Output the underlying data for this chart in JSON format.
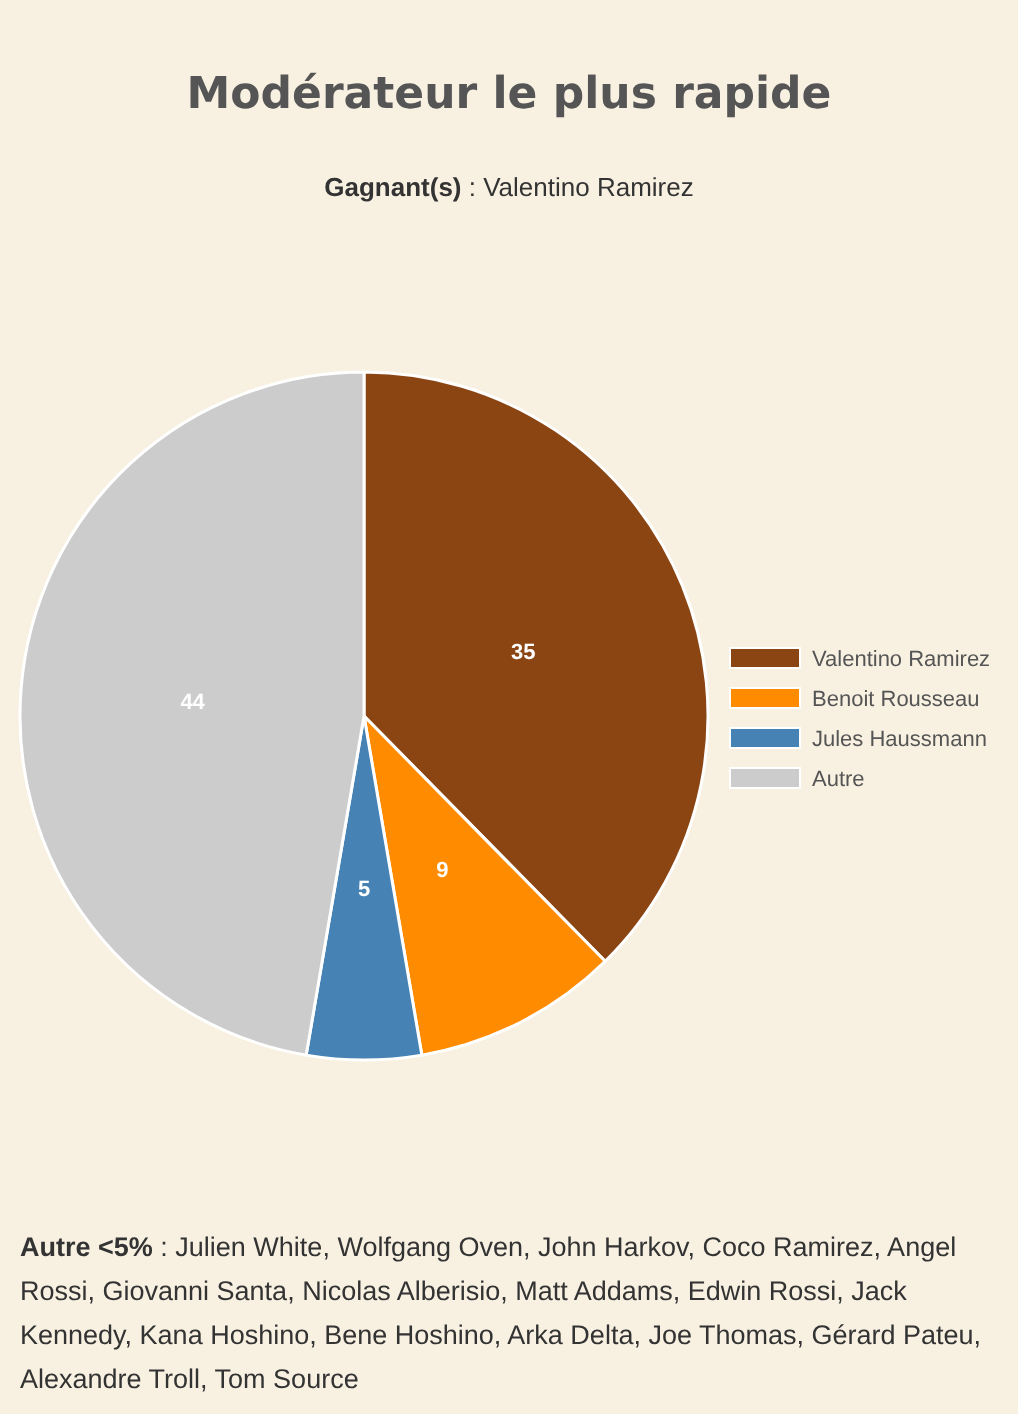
{
  "chart_data": {
    "type": "pie",
    "title": "Modérateur le plus rapide",
    "subtitle": "Gagnant(s) : Valentino Ramirez",
    "categories": [
      "Valentino Ramirez",
      "Benoit Rousseau",
      "Jules Haussmann",
      "Autre"
    ],
    "values": [
      35,
      9,
      5,
      44
    ],
    "colors": [
      "#8b4513",
      "#ff8c00",
      "#4682b4",
      "#cccccc"
    ],
    "data_labels": true,
    "legend": "right",
    "annotations": [
      "Autre <5% : Julien White, Wolfgang Oven, John Harkov, Coco Ramirez, Angel Rossi, Giovanni Santa, Nicolas Alberisio, Matt Addams, Edwin Rossi, Jack Kennedy, Kana Hoshino, Bene Hoshino, Arka Delta, Joe Thomas, Gérard Pateu, Alexandre Troll, Tom Source"
    ]
  }
}
